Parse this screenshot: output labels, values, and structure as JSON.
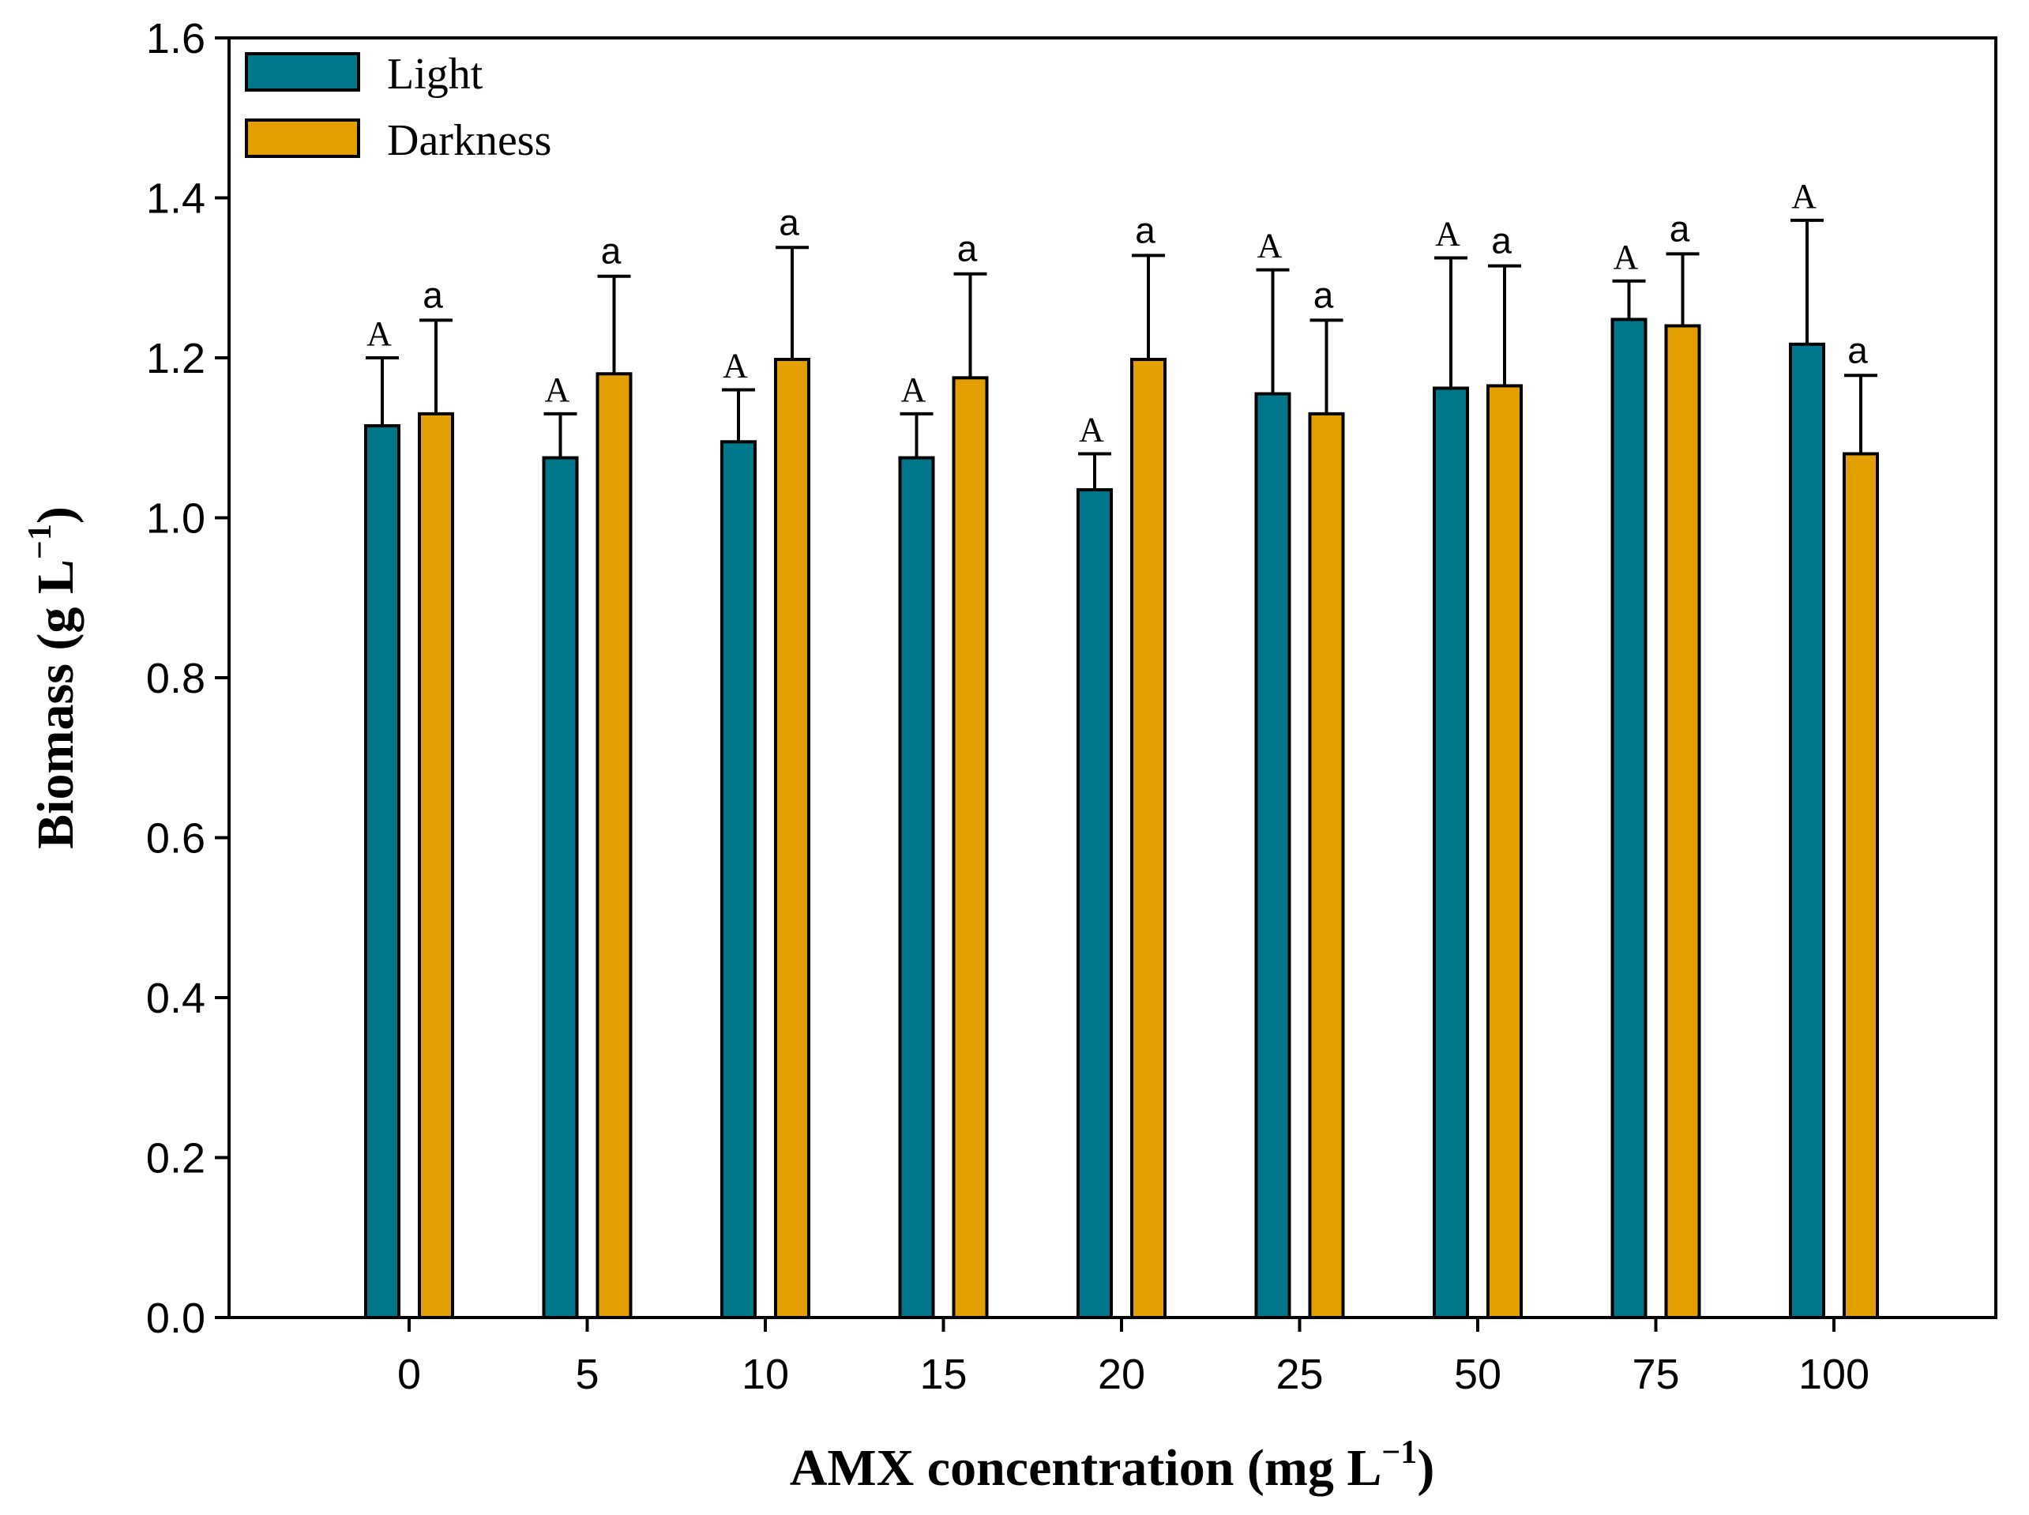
{
  "chart_data": {
    "type": "bar",
    "xlabel": "AMX concentration (mg L",
    "xlabel_sup": "−1",
    "xlabel_close": ")",
    "ylabel": "Biomass (g L",
    "ylabel_sup": "−1",
    "ylabel_close": ")",
    "ylim": [
      0,
      1.6
    ],
    "yticks": [
      "0.0",
      "0.2",
      "0.4",
      "0.6",
      "0.8",
      "1.0",
      "1.2",
      "1.4",
      "1.6"
    ],
    "categories": [
      "0",
      "5",
      "10",
      "15",
      "20",
      "25",
      "50",
      "75",
      "100"
    ],
    "legend_position": "top-left",
    "grid": false,
    "series": [
      {
        "name": "Light",
        "color": "#00768a",
        "values": [
          1.115,
          1.075,
          1.095,
          1.075,
          1.035,
          1.155,
          1.162,
          1.248,
          1.217
        ],
        "errors": [
          0.085,
          0.055,
          0.065,
          0.055,
          0.045,
          0.155,
          0.163,
          0.048,
          0.155
        ],
        "labels": [
          "A",
          "A",
          "A",
          "A",
          "A",
          "A",
          "A",
          "A",
          "A"
        ]
      },
      {
        "name": "Darkness",
        "color": "#e39f00",
        "values": [
          1.13,
          1.18,
          1.198,
          1.175,
          1.198,
          1.13,
          1.165,
          1.24,
          1.08
        ],
        "errors": [
          0.117,
          0.122,
          0.14,
          0.13,
          0.13,
          0.117,
          0.15,
          0.09,
          0.098
        ],
        "labels": [
          "a",
          "a",
          "a",
          "a",
          "a",
          "a",
          "a",
          "a",
          "a"
        ]
      }
    ]
  }
}
